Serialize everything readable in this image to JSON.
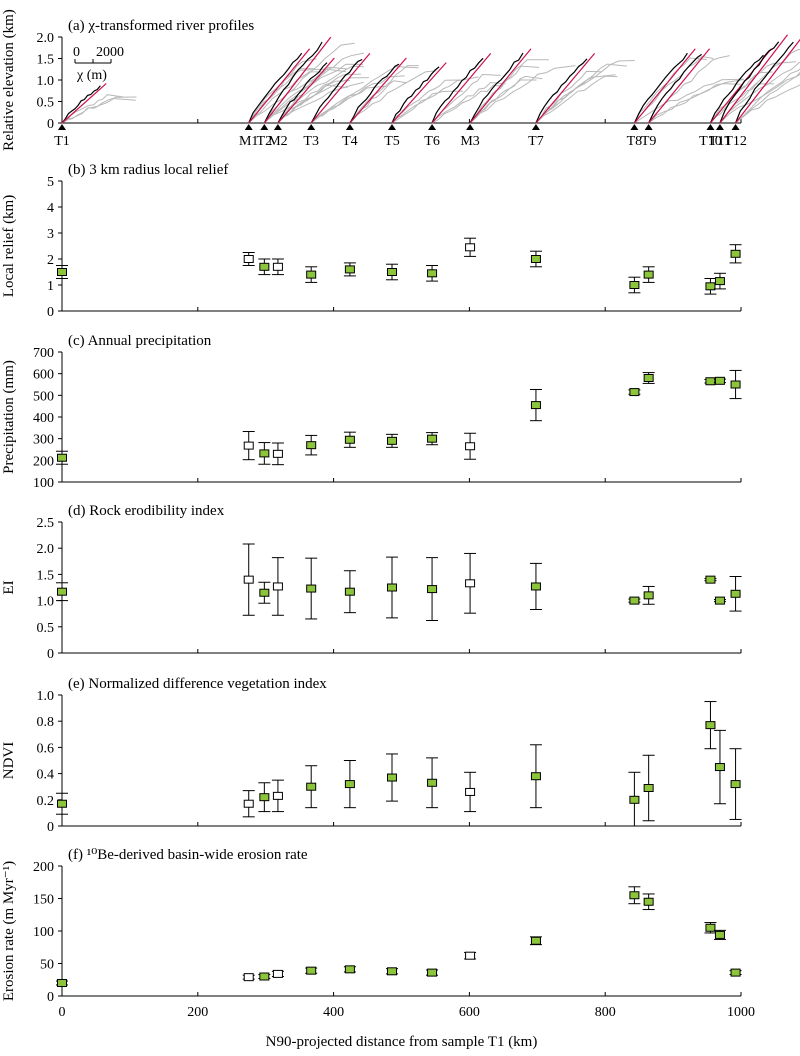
{
  "colors": {
    "marker_fill": "#8cc43c",
    "marker_edge": "#000000",
    "profile_grey": "#b8b8b8",
    "profile_black": "#000000",
    "chi_fit_red": "#d0104c"
  },
  "shared_x": {
    "label": "N90-projected distance from sample T1 (km)",
    "range": [
      0,
      1000
    ],
    "ticks": [
      "0",
      "200",
      "400",
      "600",
      "800",
      "1000"
    ]
  },
  "chart_data": [
    {
      "id": "a",
      "type": "line",
      "title": "(a) χ-transformed river profiles",
      "ylabel": "Relative elevation (km)",
      "ylim": [
        0,
        2.0
      ],
      "yticks": [
        "0",
        "0.5",
        "1.0",
        "1.5",
        "2.0"
      ],
      "scale_bar": {
        "ticks": [
          "0",
          "2000"
        ],
        "label": "χ (m)"
      },
      "sites": [
        {
          "name": "T1",
          "x": 0,
          "relief": 0.85
        },
        {
          "name": "M1",
          "x": 275,
          "relief": 1.6
        },
        {
          "name": "T2",
          "x": 298,
          "relief": 1.85
        },
        {
          "name": "M2",
          "x": 318,
          "relief": 1.4
        },
        {
          "name": "T3",
          "x": 367,
          "relief": 1.5
        },
        {
          "name": "T4",
          "x": 424,
          "relief": 1.4
        },
        {
          "name": "T5",
          "x": 486,
          "relief": 1.3
        },
        {
          "name": "T6",
          "x": 545,
          "relief": 1.5
        },
        {
          "name": "M3",
          "x": 601,
          "relief": 1.6
        },
        {
          "name": "T7",
          "x": 698,
          "relief": 1.5
        },
        {
          "name": "T8",
          "x": 843,
          "relief": 1.6
        },
        {
          "name": "T9",
          "x": 864,
          "relief": 1.6
        },
        {
          "name": "T10",
          "x": 955,
          "relief": 1.6
        },
        {
          "name": "T11",
          "x": 969,
          "relief": 1.9
        },
        {
          "name": "T12",
          "x": 992,
          "relief": 1.85
        }
      ]
    },
    {
      "id": "b",
      "type": "scatter",
      "title": "(b) 3 km radius local relief",
      "ylabel": "Local relief (km)",
      "ylim": [
        0,
        5
      ],
      "yticks": [
        "0",
        "1",
        "2",
        "3",
        "4",
        "5"
      ],
      "points": [
        {
          "x": 0,
          "y": 1.5,
          "err": 0.25,
          "open": false
        },
        {
          "x": 275,
          "y": 2.0,
          "err": 0.25,
          "open": true
        },
        {
          "x": 298,
          "y": 1.7,
          "err": 0.3,
          "open": false
        },
        {
          "x": 318,
          "y": 1.7,
          "err": 0.3,
          "open": true
        },
        {
          "x": 367,
          "y": 1.4,
          "err": 0.3,
          "open": false
        },
        {
          "x": 424,
          "y": 1.6,
          "err": 0.25,
          "open": false
        },
        {
          "x": 486,
          "y": 1.5,
          "err": 0.3,
          "open": false
        },
        {
          "x": 545,
          "y": 1.45,
          "err": 0.3,
          "open": false
        },
        {
          "x": 601,
          "y": 2.45,
          "err": 0.35,
          "open": true
        },
        {
          "x": 698,
          "y": 2.0,
          "err": 0.3,
          "open": false
        },
        {
          "x": 843,
          "y": 1.0,
          "err": 0.3,
          "open": false
        },
        {
          "x": 864,
          "y": 1.4,
          "err": 0.3,
          "open": false
        },
        {
          "x": 955,
          "y": 0.95,
          "err": 0.3,
          "open": false
        },
        {
          "x": 969,
          "y": 1.15,
          "err": 0.3,
          "open": false
        },
        {
          "x": 992,
          "y": 2.2,
          "err": 0.35,
          "open": false
        }
      ]
    },
    {
      "id": "c",
      "type": "scatter",
      "title": "(c) Annual precipitation",
      "ylabel": "Precipitation (mm)",
      "ylim": [
        100,
        700
      ],
      "yticks": [
        "100",
        "200",
        "300",
        "400",
        "500",
        "600",
        "700"
      ],
      "points": [
        {
          "x": 0,
          "y": 212,
          "err": 30,
          "open": false
        },
        {
          "x": 275,
          "y": 268,
          "err": 65,
          "open": true
        },
        {
          "x": 298,
          "y": 232,
          "err": 50,
          "open": false
        },
        {
          "x": 318,
          "y": 230,
          "err": 50,
          "open": true
        },
        {
          "x": 367,
          "y": 270,
          "err": 45,
          "open": false
        },
        {
          "x": 424,
          "y": 295,
          "err": 35,
          "open": false
        },
        {
          "x": 486,
          "y": 290,
          "err": 30,
          "open": false
        },
        {
          "x": 545,
          "y": 300,
          "err": 28,
          "open": false
        },
        {
          "x": 601,
          "y": 265,
          "err": 60,
          "open": true
        },
        {
          "x": 698,
          "y": 455,
          "err": 72,
          "open": false
        },
        {
          "x": 843,
          "y": 515,
          "err": 10,
          "open": false
        },
        {
          "x": 864,
          "y": 580,
          "err": 25,
          "open": false
        },
        {
          "x": 955,
          "y": 565,
          "err": 8,
          "open": false
        },
        {
          "x": 969,
          "y": 567,
          "err": 8,
          "open": false
        },
        {
          "x": 992,
          "y": 550,
          "err": 65,
          "open": false
        }
      ]
    },
    {
      "id": "d",
      "type": "scatter",
      "title": "(d) Rock erodibility index",
      "ylabel": "EI",
      "ylim": [
        0,
        2.5
      ],
      "yticks": [
        "0",
        "0.5",
        "1.0",
        "1.5",
        "2.0",
        "2.5"
      ],
      "points": [
        {
          "x": 0,
          "y": 1.17,
          "err": 0.17,
          "open": false
        },
        {
          "x": 275,
          "y": 1.4,
          "err": 0.68,
          "open": true
        },
        {
          "x": 298,
          "y": 1.15,
          "err": 0.2,
          "open": false
        },
        {
          "x": 318,
          "y": 1.27,
          "err": 0.55,
          "open": true
        },
        {
          "x": 367,
          "y": 1.23,
          "err": 0.58,
          "open": false
        },
        {
          "x": 424,
          "y": 1.17,
          "err": 0.4,
          "open": false
        },
        {
          "x": 486,
          "y": 1.25,
          "err": 0.58,
          "open": false
        },
        {
          "x": 545,
          "y": 1.22,
          "err": 0.6,
          "open": false
        },
        {
          "x": 601,
          "y": 1.33,
          "err": 0.57,
          "open": true
        },
        {
          "x": 698,
          "y": 1.27,
          "err": 0.44,
          "open": false
        },
        {
          "x": 843,
          "y": 1.0,
          "err": 0.03,
          "open": false
        },
        {
          "x": 864,
          "y": 1.1,
          "err": 0.17,
          "open": false
        },
        {
          "x": 955,
          "y": 1.4,
          "err": 0.02,
          "open": false
        },
        {
          "x": 969,
          "y": 1.0,
          "err": 0.02,
          "open": false
        },
        {
          "x": 992,
          "y": 1.13,
          "err": 0.33,
          "open": false
        }
      ]
    },
    {
      "id": "e",
      "type": "scatter",
      "title": "(e) Normalized difference vegetation index",
      "ylabel": "NDVI",
      "ylim": [
        0,
        1.0
      ],
      "yticks": [
        "0",
        "0.2",
        "0.4",
        "0.6",
        "0.8",
        "1.0"
      ],
      "points": [
        {
          "x": 0,
          "y": 0.17,
          "err": 0.08,
          "open": false
        },
        {
          "x": 275,
          "y": 0.17,
          "err": 0.1,
          "open": true
        },
        {
          "x": 298,
          "y": 0.22,
          "err": 0.11,
          "open": false
        },
        {
          "x": 318,
          "y": 0.23,
          "err": 0.12,
          "open": true
        },
        {
          "x": 367,
          "y": 0.3,
          "err": 0.16,
          "open": false
        },
        {
          "x": 424,
          "y": 0.32,
          "err": 0.18,
          "open": false
        },
        {
          "x": 486,
          "y": 0.37,
          "err": 0.18,
          "open": false
        },
        {
          "x": 545,
          "y": 0.33,
          "err": 0.19,
          "open": false
        },
        {
          "x": 601,
          "y": 0.26,
          "err": 0.15,
          "open": true
        },
        {
          "x": 698,
          "y": 0.38,
          "err": 0.24,
          "open": false
        },
        {
          "x": 843,
          "y": 0.2,
          "err": 0.21,
          "open": false
        },
        {
          "x": 864,
          "y": 0.29,
          "err": 0.25,
          "open": false
        },
        {
          "x": 955,
          "y": 0.77,
          "err": 0.18,
          "open": false
        },
        {
          "x": 969,
          "y": 0.45,
          "err": 0.28,
          "open": false
        },
        {
          "x": 992,
          "y": 0.32,
          "err": 0.27,
          "open": false
        }
      ]
    },
    {
      "id": "f",
      "type": "scatter",
      "title": "(f) ¹⁰Be-derived basin-wide erosion rate",
      "ylabel": "Erosion rate (m Myr⁻¹)",
      "ylim": [
        0,
        200
      ],
      "yticks": [
        "0",
        "50",
        "100",
        "150",
        "200"
      ],
      "points": [
        {
          "x": 0,
          "y": 20,
          "err": 3,
          "open": false
        },
        {
          "x": 275,
          "y": 29,
          "err": 3,
          "open": true
        },
        {
          "x": 298,
          "y": 30,
          "err": 3,
          "open": false
        },
        {
          "x": 318,
          "y": 34,
          "err": 4,
          "open": true
        },
        {
          "x": 367,
          "y": 39,
          "err": 4,
          "open": false
        },
        {
          "x": 424,
          "y": 41,
          "err": 4,
          "open": false
        },
        {
          "x": 486,
          "y": 38,
          "err": 4,
          "open": false
        },
        {
          "x": 545,
          "y": 36,
          "err": 4,
          "open": false
        },
        {
          "x": 601,
          "y": 62,
          "err": 5,
          "open": true
        },
        {
          "x": 698,
          "y": 85,
          "err": 6,
          "open": false
        },
        {
          "x": 843,
          "y": 155,
          "err": 13,
          "open": false
        },
        {
          "x": 864,
          "y": 145,
          "err": 12,
          "open": false
        },
        {
          "x": 955,
          "y": 105,
          "err": 8,
          "open": false
        },
        {
          "x": 969,
          "y": 94,
          "err": 7,
          "open": false
        },
        {
          "x": 992,
          "y": 36,
          "err": 3,
          "open": false
        }
      ]
    }
  ]
}
